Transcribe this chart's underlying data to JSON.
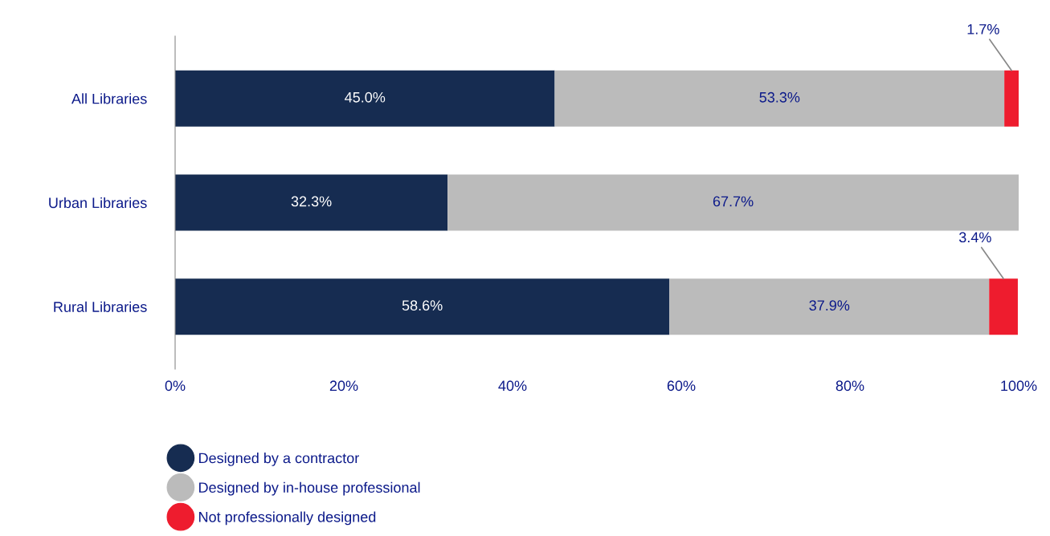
{
  "chart_data": {
    "type": "bar",
    "orientation": "horizontal",
    "stacked": true,
    "categories": [
      "All Libraries",
      "Urban Libraries",
      "Rural Libraries"
    ],
    "series": [
      {
        "name": "Designed by a contractor",
        "color": "#162c51",
        "values": [
          45.0,
          32.3,
          58.6
        ],
        "value_labels": [
          "45.0%",
          "32.3%",
          "58.6%"
        ]
      },
      {
        "name": "Designed by in-house professional",
        "color": "#bbbbbb",
        "values": [
          53.3,
          67.7,
          37.9
        ],
        "value_labels": [
          "53.3%",
          "67.7%",
          "37.9%"
        ]
      },
      {
        "name": "Not professionally designed",
        "color": "#ee1c2e",
        "values": [
          1.7,
          0,
          3.4
        ],
        "value_labels": [
          "1.7%",
          null,
          "3.4%"
        ]
      }
    ],
    "xlim": [
      0,
      100
    ],
    "xticks": [
      {
        "value": 0,
        "label": "0%"
      },
      {
        "value": 20,
        "label": "20%"
      },
      {
        "value": 40,
        "label": "40%"
      },
      {
        "value": 60,
        "label": "60%"
      },
      {
        "value": 80,
        "label": "80%"
      },
      {
        "value": 100,
        "label": "100%"
      }
    ],
    "grid": false,
    "legend": "bottom left",
    "marker": "circle"
  }
}
